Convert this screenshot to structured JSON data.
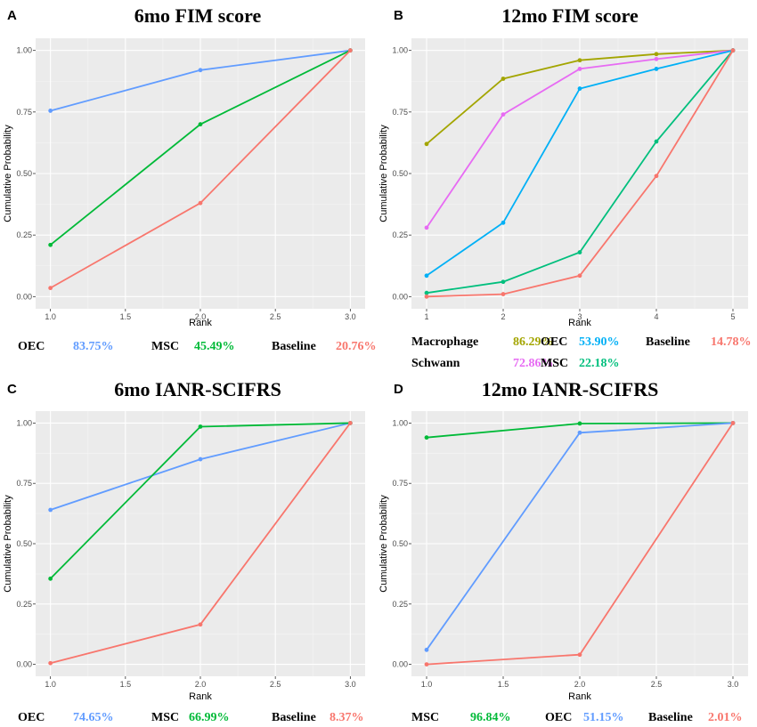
{
  "colors": {
    "OEC": "#619CFF",
    "MSC": "#00BA38",
    "Baseline": "#F8766D",
    "Macrophage": "#A3A500",
    "OEC_B": "#00B0F6",
    "MSC_B": "#00BF7D",
    "Schwann": "#E76BF3"
  },
  "chart_data": [
    {
      "panel": "A",
      "title": "6mo FIM score",
      "type": "line",
      "xlabel": "Rank",
      "ylabel": "Cumulative Probability",
      "xlim": [
        1,
        3
      ],
      "ylim": [
        0,
        1
      ],
      "x_ticks": [
        "1.0",
        "1.5",
        "2.0",
        "2.5",
        "3.0"
      ],
      "y_ticks": [
        "0.00",
        "0.25",
        "0.50",
        "0.75",
        "1.00"
      ],
      "x": [
        1,
        2,
        3
      ],
      "series": [
        {
          "name": "OEC",
          "color": "#619CFF",
          "values": [
            0.755,
            0.92,
            1.0
          ]
        },
        {
          "name": "MSC",
          "color": "#00BA38",
          "values": [
            0.21,
            0.7,
            1.0
          ]
        },
        {
          "name": "Baseline",
          "color": "#F8766D",
          "values": [
            0.035,
            0.38,
            1.0
          ]
        }
      ],
      "legend": [
        {
          "name": "OEC",
          "value": "83.75%",
          "color": "#619CFF"
        },
        {
          "name": "MSC",
          "value": "45.49%",
          "color": "#00BA38"
        },
        {
          "name": "Baseline",
          "value": "20.76%",
          "color": "#F8766D"
        }
      ]
    },
    {
      "panel": "B",
      "title": "12mo FIM score",
      "type": "line",
      "xlabel": "Rank",
      "ylabel": "Cumulative Probability",
      "xlim": [
        1,
        5
      ],
      "ylim": [
        0,
        1
      ],
      "x_ticks": [
        "1",
        "2",
        "3",
        "4",
        "5"
      ],
      "y_ticks": [
        "0.00",
        "0.25",
        "0.50",
        "0.75",
        "1.00"
      ],
      "x": [
        1,
        2,
        3,
        4,
        5
      ],
      "series": [
        {
          "name": "Macrophage",
          "color": "#A3A500",
          "values": [
            0.62,
            0.885,
            0.96,
            0.985,
            1.0
          ]
        },
        {
          "name": "Schwann",
          "color": "#E76BF3",
          "values": [
            0.28,
            0.74,
            0.925,
            0.965,
            1.0
          ]
        },
        {
          "name": "OEC",
          "color": "#00B0F6",
          "values": [
            0.085,
            0.3,
            0.845,
            0.925,
            1.0
          ]
        },
        {
          "name": "MSC",
          "color": "#00BF7D",
          "values": [
            0.015,
            0.06,
            0.18,
            0.63,
            1.0
          ]
        },
        {
          "name": "Baseline",
          "color": "#F8766D",
          "values": [
            0.0,
            0.01,
            0.085,
            0.49,
            1.0
          ]
        }
      ],
      "legend": [
        {
          "name": "Macrophage",
          "value": "86.29%",
          "color": "#A3A500"
        },
        {
          "name": "OEC",
          "value": "53.90%",
          "color": "#00B0F6"
        },
        {
          "name": "Baseline",
          "value": "14.78%",
          "color": "#F8766D"
        },
        {
          "name": "Schwann",
          "value": "72.86%",
          "color": "#E76BF3"
        },
        {
          "name": "MSC",
          "value": "22.18%",
          "color": "#00BF7D"
        }
      ]
    },
    {
      "panel": "C",
      "title": "6mo IANR-SCIFRS",
      "type": "line",
      "xlabel": "Rank",
      "ylabel": "Cumulative Probability",
      "xlim": [
        1,
        3
      ],
      "ylim": [
        0,
        1
      ],
      "x_ticks": [
        "1.0",
        "1.5",
        "2.0",
        "2.5",
        "3.0"
      ],
      "y_ticks": [
        "0.00",
        "0.25",
        "0.50",
        "0.75",
        "1.00"
      ],
      "x": [
        1,
        2,
        3
      ],
      "series": [
        {
          "name": "OEC",
          "color": "#619CFF",
          "values": [
            0.64,
            0.85,
            1.0
          ]
        },
        {
          "name": "MSC",
          "color": "#00BA38",
          "values": [
            0.355,
            0.985,
            1.0
          ]
        },
        {
          "name": "Baseline",
          "color": "#F8766D",
          "values": [
            0.005,
            0.165,
            1.0
          ]
        }
      ],
      "legend": [
        {
          "name": "OEC",
          "value": "74.65%",
          "color": "#619CFF"
        },
        {
          "name": "MSC",
          "value": "66.99%",
          "color": "#00BA38"
        },
        {
          "name": "Baseline",
          "value": "8.37%",
          "color": "#F8766D"
        }
      ]
    },
    {
      "panel": "D",
      "title": "12mo IANR-SCIFRS",
      "type": "line",
      "xlabel": "Rank",
      "ylabel": "Cumulative Probability",
      "xlim": [
        1,
        3
      ],
      "ylim": [
        0,
        1
      ],
      "x_ticks": [
        "1.0",
        "1.5",
        "2.0",
        "2.5",
        "3.0"
      ],
      "y_ticks": [
        "0.00",
        "0.25",
        "0.50",
        "0.75",
        "1.00"
      ],
      "x": [
        1,
        2,
        3
      ],
      "series": [
        {
          "name": "MSC",
          "color": "#00BA38",
          "values": [
            0.94,
            0.998,
            1.0
          ]
        },
        {
          "name": "OEC",
          "color": "#619CFF",
          "values": [
            0.06,
            0.96,
            1.0
          ]
        },
        {
          "name": "Baseline",
          "color": "#F8766D",
          "values": [
            0.0,
            0.04,
            1.0
          ]
        }
      ],
      "legend": [
        {
          "name": "MSC",
          "value": "96.84%",
          "color": "#00BA38"
        },
        {
          "name": "OEC",
          "value": "51.15%",
          "color": "#619CFF"
        },
        {
          "name": "Baseline",
          "value": "2.01%",
          "color": "#F8766D"
        }
      ]
    }
  ]
}
